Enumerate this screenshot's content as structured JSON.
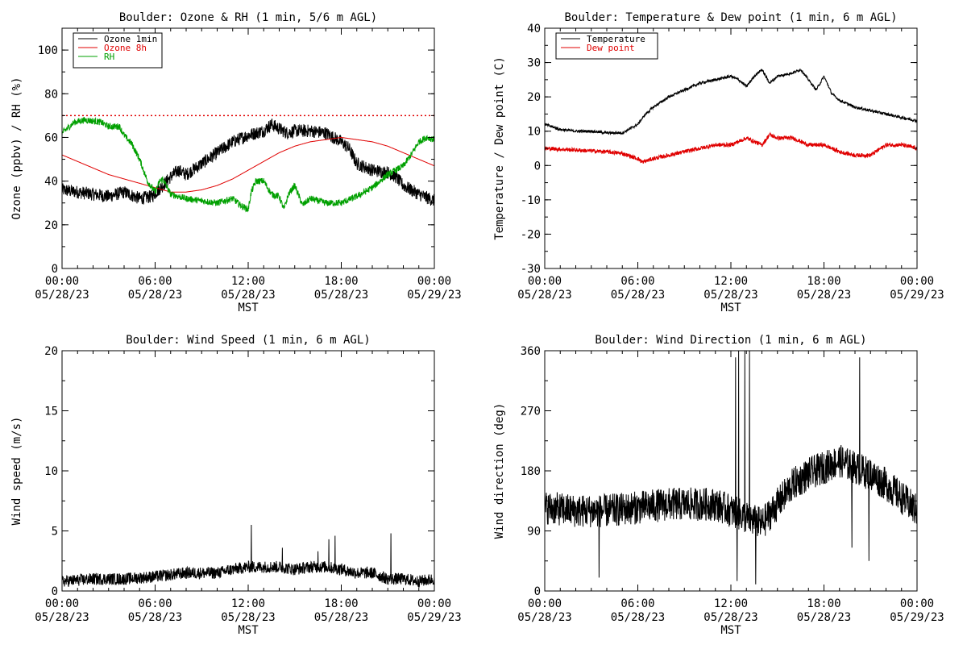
{
  "figure": {
    "time_axis": {
      "ticks": [
        {
          "hour": 0,
          "time": "00:00",
          "date": "05/28/23"
        },
        {
          "hour": 6,
          "time": "06:00",
          "date": "05/28/23"
        },
        {
          "hour": 12,
          "time": "12:00",
          "date": "05/28/23"
        },
        {
          "hour": 18,
          "time": "18:00",
          "date": "05/28/23"
        },
        {
          "hour": 24,
          "time": "00:00",
          "date": "05/29/23"
        }
      ],
      "label": "MST"
    }
  },
  "chart_data": [
    {
      "id": "ozone-rh",
      "type": "line",
      "title": "Boulder: Ozone & RH (1 min, 5/6 m AGL)",
      "xlabel": "MST",
      "ylabel": "Ozone (ppbv) / RH (%)",
      "xlim": [
        0,
        24
      ],
      "ylim": [
        0,
        110
      ],
      "yticks": [
        0,
        20,
        40,
        60,
        80,
        100
      ],
      "legend_position": "top-left",
      "reference_line": {
        "y": 70,
        "style": "dotted",
        "color": "#e00000"
      },
      "series": [
        {
          "name": "Ozone 1min",
          "color": "#000000",
          "noise": 3,
          "x": [
            0,
            1,
            2,
            3,
            4,
            5,
            5.8,
            6.5,
            7,
            7.5,
            8,
            9,
            10,
            11,
            12,
            13,
            13.5,
            14,
            14.5,
            15,
            16,
            17,
            17.5,
            18,
            18.5,
            19,
            20,
            21,
            21.5,
            22,
            23,
            24
          ],
          "y": [
            36,
            35,
            34,
            33,
            35,
            32,
            33,
            38,
            42,
            45,
            43,
            48,
            53,
            58,
            61,
            63,
            66,
            64,
            62,
            63,
            63,
            62,
            60,
            58,
            55,
            48,
            45,
            44,
            42,
            38,
            34,
            31
          ]
        },
        {
          "name": "Ozone 8h",
          "color": "#e00000",
          "noise": 0,
          "x": [
            0,
            1,
            2,
            3,
            4,
            5,
            6,
            7,
            8,
            9,
            10,
            11,
            12,
            13,
            14,
            15,
            16,
            17,
            18,
            19,
            20,
            21,
            22,
            23,
            24
          ],
          "y": [
            52,
            49,
            46,
            43,
            41,
            39,
            37,
            35,
            35,
            36,
            38,
            41,
            45,
            49,
            53,
            56,
            58,
            59,
            60,
            59,
            58,
            56,
            53,
            50,
            47
          ]
        },
        {
          "name": "RH",
          "color": "#00a000",
          "noise": 1.5,
          "x": [
            0,
            0.8,
            1.5,
            2.5,
            3,
            3.7,
            4,
            4.5,
            5,
            5.5,
            6,
            6.3,
            6.5,
            7,
            8,
            9,
            10,
            11,
            11.5,
            12,
            12.2,
            12.5,
            13,
            13.5,
            14,
            14.3,
            14.6,
            15,
            15.5,
            16,
            17,
            18,
            19,
            20,
            21,
            22,
            22.5,
            23,
            23.5,
            24
          ],
          "y": [
            62,
            67,
            68,
            67,
            65,
            65,
            61,
            57,
            50,
            40,
            35,
            40,
            41,
            34,
            32,
            31,
            30,
            32,
            29,
            27,
            35,
            40,
            40,
            34,
            33,
            27,
            34,
            38,
            29,
            32,
            30,
            30,
            33,
            37,
            43,
            47,
            52,
            58,
            60,
            59
          ]
        }
      ]
    },
    {
      "id": "temp-dew",
      "type": "line",
      "title": "Boulder: Temperature & Dew point (1 min, 6 m AGL)",
      "xlabel": "MST",
      "ylabel": "Temperature / Dew point (C)",
      "xlim": [
        0,
        24
      ],
      "ylim": [
        -30,
        40
      ],
      "yticks": [
        -30,
        -20,
        -10,
        0,
        10,
        20,
        30,
        40
      ],
      "legend_position": "top-left",
      "series": [
        {
          "name": "Temperature",
          "color": "#000000",
          "noise": 0.4,
          "x": [
            0,
            1,
            2,
            3,
            4,
            5,
            6,
            6.5,
            7,
            8,
            9,
            10,
            11,
            12,
            12.5,
            13,
            13.5,
            14,
            14.5,
            15,
            16,
            16.5,
            17,
            17.5,
            18,
            18.5,
            19,
            20,
            21,
            22,
            23,
            24
          ],
          "y": [
            12,
            10.5,
            10,
            10,
            9.5,
            9.5,
            12,
            15,
            17,
            20,
            22,
            24,
            25,
            26,
            25,
            23,
            26,
            28,
            24,
            26,
            27,
            28,
            25,
            22,
            26,
            21,
            19,
            17,
            16,
            15,
            14,
            13
          ]
        },
        {
          "name": "Dew point",
          "color": "#e00000",
          "noise": 0.6,
          "x": [
            0,
            2,
            4,
            5,
            6,
            6.3,
            7,
            8,
            9,
            10,
            11,
            12,
            12.5,
            13,
            13.5,
            14,
            14.5,
            15,
            16,
            17,
            18,
            19,
            20,
            21,
            22,
            23,
            24
          ],
          "y": [
            5,
            4.5,
            4,
            3.5,
            2,
            1,
            2,
            3,
            4,
            5,
            6,
            6,
            7,
            8,
            7,
            6,
            9,
            8,
            8,
            6,
            6,
            4,
            3,
            3,
            6,
            6,
            5
          ]
        }
      ]
    },
    {
      "id": "wind-speed",
      "type": "line",
      "title": "Boulder: Wind Speed (1 min, 6 m AGL)",
      "xlabel": "MST",
      "ylabel": "Wind speed (m/s)",
      "xlim": [
        0,
        24
      ],
      "ylim": [
        0,
        20
      ],
      "yticks": [
        0,
        5,
        10,
        15,
        20
      ],
      "series": [
        {
          "name": "",
          "color": "#000000",
          "noise": 0.5,
          "x": [
            0,
            2,
            4,
            6,
            8,
            10,
            11,
            12,
            13,
            14,
            15,
            16,
            17,
            18,
            19,
            20,
            21,
            22,
            23,
            24
          ],
          "y": [
            0.8,
            1.0,
            1.0,
            1.2,
            1.5,
            1.5,
            1.8,
            2.0,
            2.0,
            2.0,
            1.8,
            2.0,
            2.0,
            1.8,
            1.5,
            1.5,
            1.0,
            1.0,
            0.8,
            1.0
          ],
          "spikes": [
            [
              12.2,
              5.5
            ],
            [
              14.2,
              3.6
            ],
            [
              16.5,
              3.3
            ],
            [
              17.2,
              4.3
            ],
            [
              17.6,
              4.6
            ],
            [
              21.2,
              4.8
            ]
          ]
        }
      ]
    },
    {
      "id": "wind-dir",
      "type": "line",
      "title": "Boulder: Wind Direction (1 min, 6 m AGL)",
      "xlabel": "MST",
      "ylabel": "Wind direction (deg)",
      "xlim": [
        0,
        24
      ],
      "ylim": [
        0,
        360
      ],
      "yticks": [
        0,
        90,
        180,
        270,
        360
      ],
      "series": [
        {
          "name": "",
          "color": "#000000",
          "noise": 25,
          "x": [
            0,
            2,
            4,
            6,
            8,
            10,
            11,
            12,
            13,
            14,
            15,
            16,
            17,
            18,
            19,
            20,
            21,
            22,
            23,
            24
          ],
          "y": [
            125,
            120,
            120,
            125,
            130,
            130,
            130,
            120,
            110,
            100,
            130,
            160,
            175,
            185,
            195,
            185,
            175,
            160,
            140,
            120
          ],
          "spikes": [
            [
              12.3,
              350
            ],
            [
              12.5,
              360
            ],
            [
              12.9,
              360
            ],
            [
              13.2,
              360
            ],
            [
              20.3,
              350
            ],
            [
              3.5,
              20
            ],
            [
              12.4,
              15
            ],
            [
              13.6,
              10
            ],
            [
              19.8,
              65
            ],
            [
              20.9,
              45
            ]
          ]
        }
      ]
    }
  ]
}
